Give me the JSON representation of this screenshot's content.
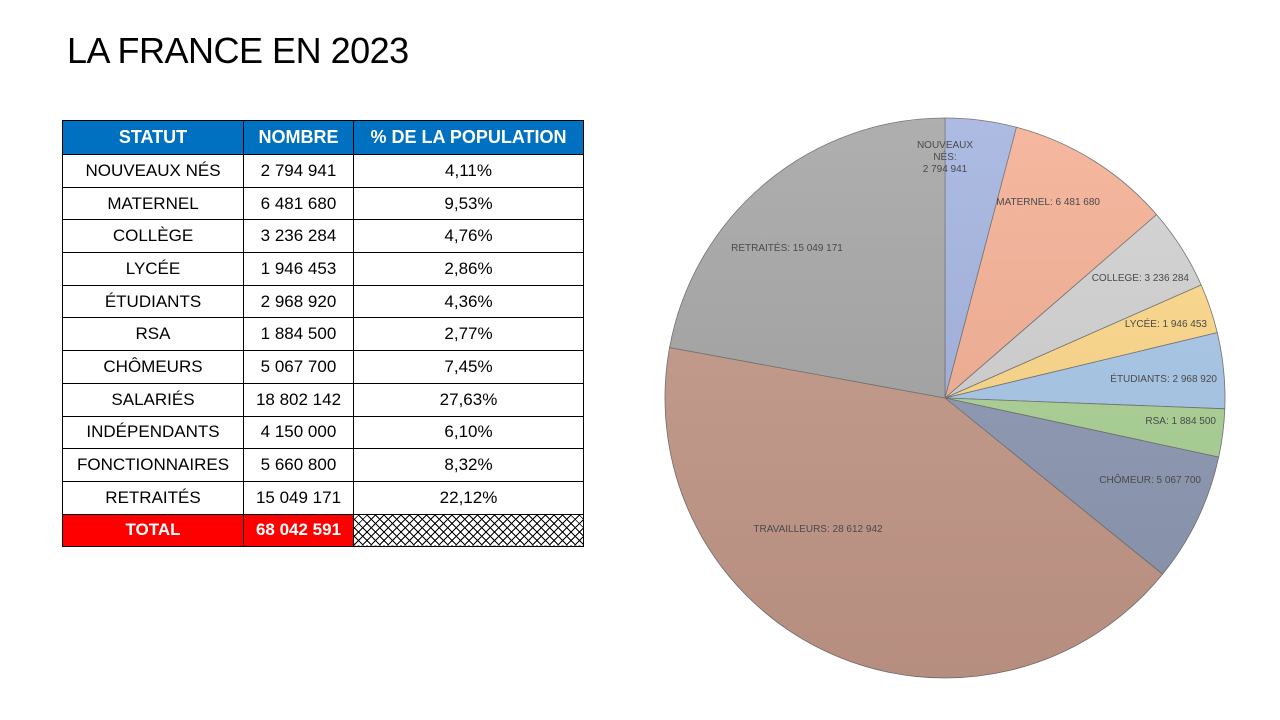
{
  "title": "LA FRANCE EN 2023",
  "table": {
    "headers": [
      "STATUT",
      "NOMBRE",
      "% DE LA POPULATION"
    ],
    "rows": [
      {
        "statut": "NOUVEAUX NÉS",
        "nombre": "2 794 941",
        "pct": "4,11%"
      },
      {
        "statut": "MATERNEL",
        "nombre": "6 481 680",
        "pct": "9,53%"
      },
      {
        "statut": "COLLÈGE",
        "nombre": "3 236 284",
        "pct": "4,76%"
      },
      {
        "statut": "LYCÉE",
        "nombre": "1 946 453",
        "pct": "2,86%"
      },
      {
        "statut": "ÉTUDIANTS",
        "nombre": "2 968 920",
        "pct": "4,36%"
      },
      {
        "statut": "RSA",
        "nombre": "1 884 500",
        "pct": "2,77%"
      },
      {
        "statut": "CHÔMEURS",
        "nombre": "5 067 700",
        "pct": "7,45%"
      },
      {
        "statut": "SALARIÉS",
        "nombre": "18 802 142",
        "pct": "27,63%"
      },
      {
        "statut": "INDÉPENDANTS",
        "nombre": "4 150 000",
        "pct": "6,10%"
      },
      {
        "statut": "FONCTIONNAIRES",
        "nombre": "5 660 800",
        "pct": "8,32%"
      },
      {
        "statut": "RETRAITÉS",
        "nombre": "15 049 171",
        "pct": "22,12%"
      }
    ],
    "total_label": "TOTAL",
    "total_value": "68 042 591"
  },
  "chart_data": {
    "type": "pie",
    "start": "top, clockwise",
    "slices": [
      {
        "label": "NOUVEAUX NÉS:",
        "value_text": "2 794 941",
        "value": 2794941,
        "color": "#a4b4e0"
      },
      {
        "label": "MATERNEL:",
        "value_text": "6 481 680",
        "value": 6481680,
        "color": "#f5b095"
      },
      {
        "label": "COLLEGE:",
        "value_text": "3 236 284",
        "value": 3236284,
        "color": "#d2d2d2"
      },
      {
        "label": "LYCÉE:",
        "value_text": "1 946 453",
        "value": 1946453,
        "color": "#ffd98a"
      },
      {
        "label": "ÉTUDIANTS:",
        "value_text": "2 968 920",
        "value": 2968920,
        "color": "#a9c8ea"
      },
      {
        "label": "RSA:",
        "value_text": "1 884 500",
        "value": 1884500,
        "color": "#acd496"
      },
      {
        "label": "CHÔMEUR:",
        "value_text": "5 067 700",
        "value": 5067700,
        "color": "#8f9ab5"
      },
      {
        "label": "TRAVAILLEURS:",
        "value_text": "28 612 942",
        "value": 28612942,
        "color": "#c69a8a"
      },
      {
        "label": "RETRAITÉS:",
        "value_text": "15 049 171",
        "value": 15049171,
        "color": "#a6a6a6"
      }
    ]
  }
}
